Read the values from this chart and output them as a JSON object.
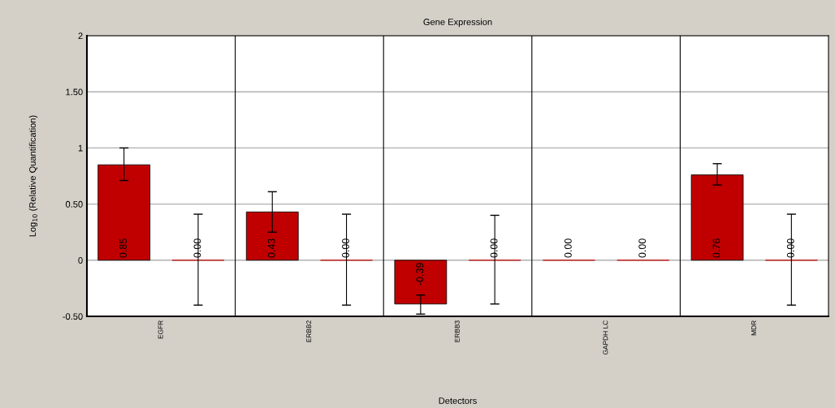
{
  "chart_data": {
    "type": "bar",
    "title": "Gene Expression",
    "xlabel": "Detectors",
    "ylabel": "Log$_{10}$ (Relative Quantification)",
    "categories": [
      "EGFR",
      "ERBB2",
      "ERBB3",
      "GAPDH LC",
      "MDR"
    ],
    "series": [
      {
        "color": "#c00000",
        "values": [
          0.85,
          0.43,
          -0.39,
          0,
          0.76
        ],
        "errors": [
          [
            0.71,
            1.0
          ],
          [
            0.25,
            0.61
          ],
          [
            -0.48,
            -0.31
          ],
          null,
          [
            0.67,
            0.86
          ]
        ],
        "value_labels": [
          "0.85",
          "0.43",
          "-0.39",
          "0.00",
          "0.76"
        ]
      },
      {
        "color": "#c00000",
        "values": [
          0,
          0,
          0,
          0,
          0
        ],
        "errors": [
          [
            -0.4,
            0.41
          ],
          [
            -0.4,
            0.41
          ],
          [
            -0.39,
            0.4
          ],
          null,
          [
            -0.4,
            0.41
          ]
        ],
        "value_labels": [
          "0.00",
          "0.00",
          "0.00",
          "0.00",
          "0.00"
        ]
      }
    ],
    "ylim": [
      -0.5,
      2
    ],
    "yticks": [
      {
        "value": -0.5,
        "label": "-0.50"
      },
      0,
      {
        "value": 0.5,
        "label": "0.50"
      },
      1,
      {
        "value": 1.5,
        "label": "1.50"
      },
      2
    ],
    "grid": "y",
    "legend": false
  }
}
